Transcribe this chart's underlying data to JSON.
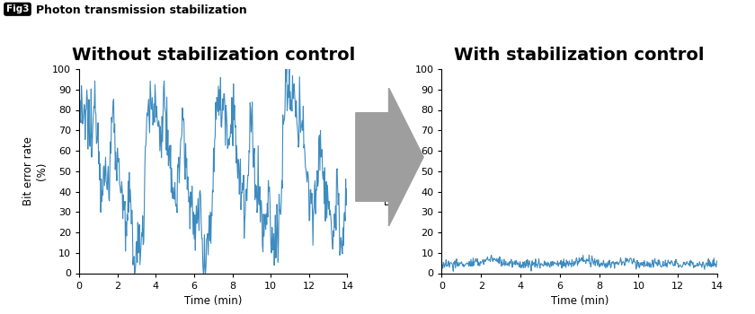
{
  "title": "Photon transmission stabilization",
  "fig3_label": "Fig3",
  "left_title": "Without stabilization control",
  "right_title": "With stabilization control",
  "ylabel_line1": "Bit error rate",
  "ylabel_line2": "(%)",
  "xlabel": "Time (min)",
  "xlim": [
    0,
    14
  ],
  "ylim": [
    0,
    100
  ],
  "yticks": [
    0,
    10,
    20,
    30,
    40,
    50,
    60,
    70,
    80,
    90,
    100
  ],
  "xticks": [
    0,
    2,
    4,
    6,
    8,
    10,
    12,
    14
  ],
  "line_color": "#3D8BBF",
  "background_color": "#ffffff",
  "arrow_color": "#9E9E9E",
  "title_fontsize": 9,
  "subtitle_fontsize": 14,
  "axis_label_fontsize": 8.5,
  "tick_fontsize": 8,
  "seed": 12345
}
